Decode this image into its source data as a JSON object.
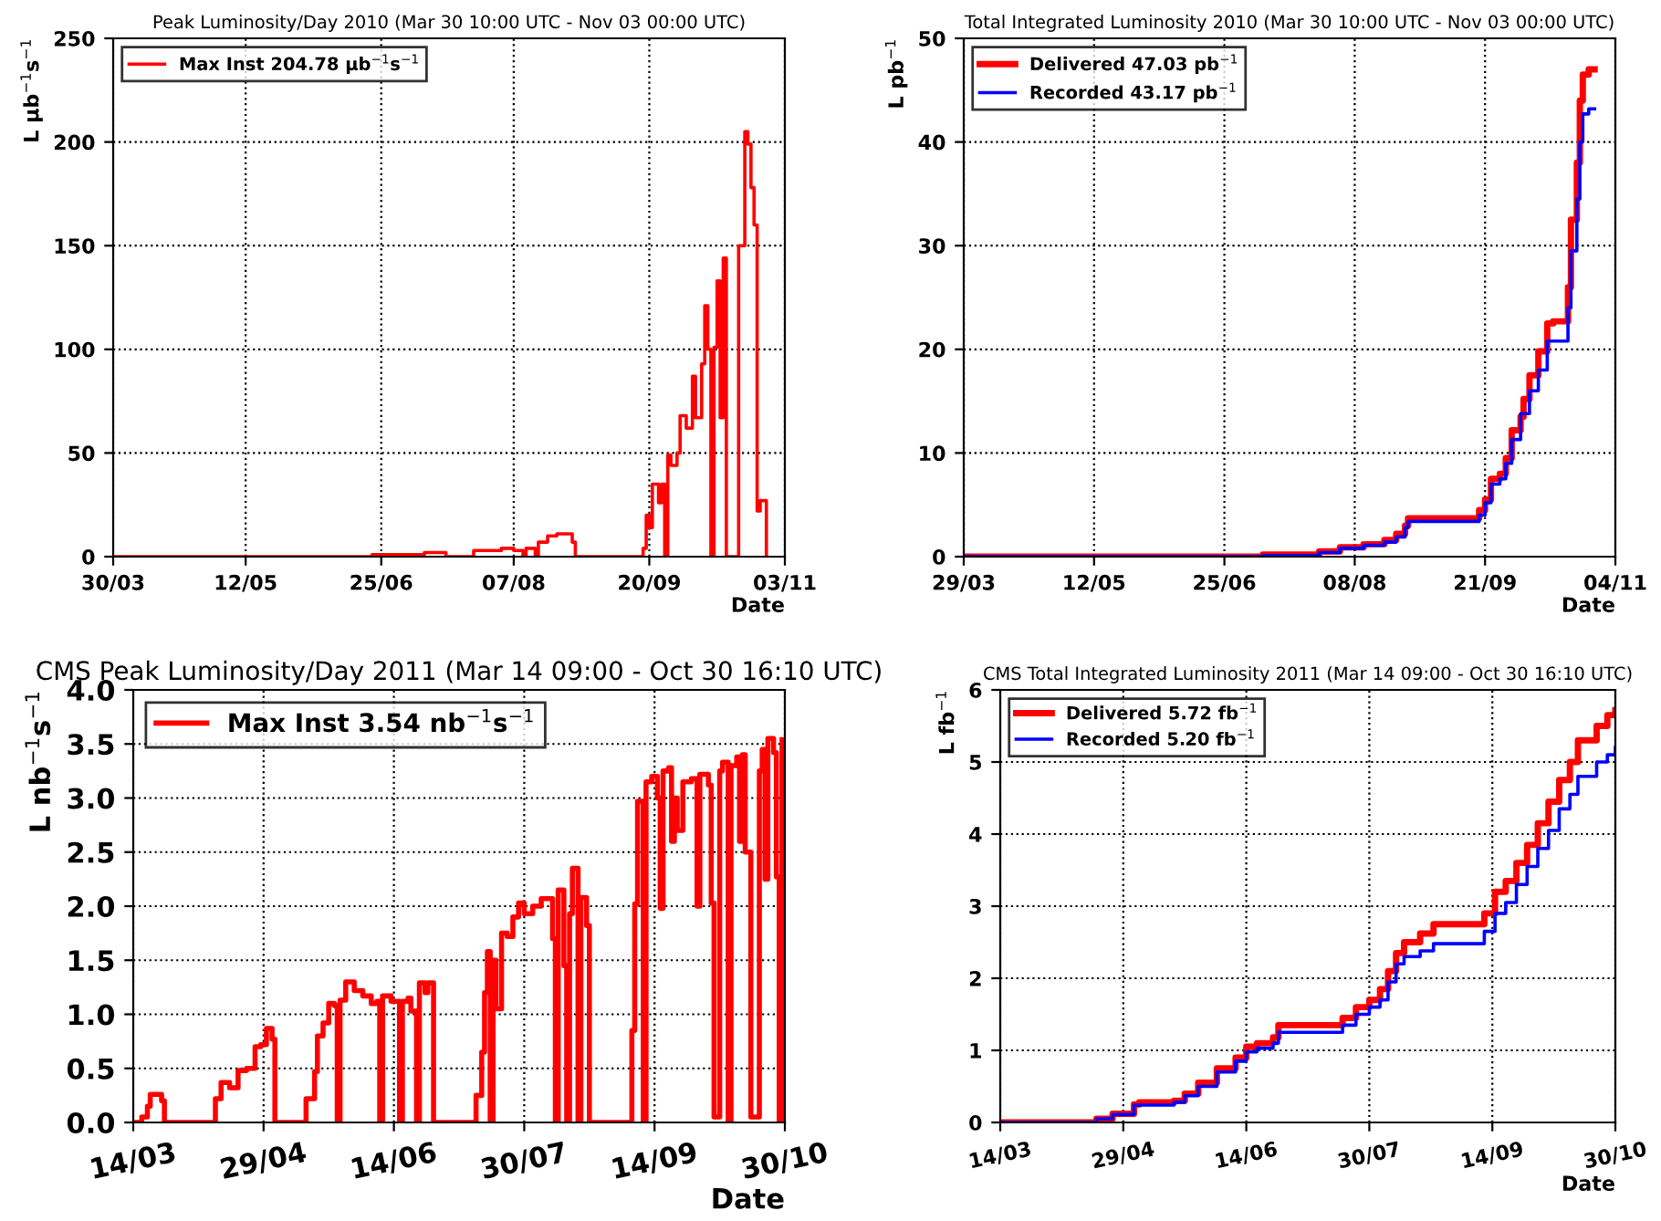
{
  "chart_data": [
    {
      "type": "step",
      "title": "Peak Luminosity/Day 2010 (Mar 30 10:00 UTC - Nov 03 00:00 UTC)",
      "xlabel": "Date",
      "ylabel": "L μb$^{−1}$s$^{−1}$",
      "xlim": [
        "2010-03-30",
        "2010-11-03"
      ],
      "xticks": [
        {
          "value": "2010-03-30",
          "label": "30/03"
        },
        {
          "value": "2010-05-12",
          "label": "12/05"
        },
        {
          "value": "2010-06-25",
          "label": "25/06"
        },
        {
          "value": "2010-08-07",
          "label": "07/08"
        },
        {
          "value": "2010-09-20",
          "label": "20/09"
        },
        {
          "value": "2010-11-03",
          "label": "03/11"
        }
      ],
      "ylim": [
        0,
        250
      ],
      "yticks": [
        0,
        50,
        100,
        150,
        200,
        250
      ],
      "grid": true,
      "legend": "top left",
      "series": [
        {
          "name": "Max Inst 204.78 μb$^{−1}$s$^{−1}$",
          "color": "#ff0000",
          "x": [
            "2010-03-30",
            "2010-06-22",
            "2010-07-09",
            "2010-07-16",
            "2010-07-25",
            "2010-08-03",
            "2010-08-07",
            "2010-08-10",
            "2010-08-11",
            "2010-08-14",
            "2010-08-15",
            "2010-08-18",
            "2010-08-21",
            "2010-08-26",
            "2010-08-27",
            "2010-09-18",
            "2010-09-19",
            "2010-09-20",
            "2010-09-21",
            "2010-09-23",
            "2010-09-24",
            "2010-09-25",
            "2010-09-26",
            "2010-09-27",
            "2010-09-29",
            "2010-09-30",
            "2010-10-02",
            "2010-10-04",
            "2010-10-05",
            "2010-10-07",
            "2010-10-08",
            "2010-10-09",
            "2010-10-10",
            "2010-10-11",
            "2010-10-12",
            "2010-10-13",
            "2010-10-14",
            "2010-10-15",
            "2010-10-19",
            "2010-10-21",
            "2010-10-22",
            "2010-10-23",
            "2010-10-24",
            "2010-10-25",
            "2010-10-26",
            "2010-10-28"
          ],
          "values": [
            0,
            1,
            2,
            0,
            3,
            4,
            3,
            0,
            4,
            0,
            7,
            10,
            11,
            7,
            0,
            4,
            20,
            14,
            35,
            26,
            35,
            0,
            49,
            44,
            50,
            68,
            62,
            87,
            67,
            93,
            121,
            100,
            0,
            101,
            133,
            67,
            144,
            0,
            150,
            205,
            199,
            178,
            160,
            22,
            27,
            0
          ]
        }
      ]
    },
    {
      "type": "step",
      "title": "Total Integrated Luminosity 2010 (Mar 30 10:00 UTC - Nov 03 00:00 UTC)",
      "xlabel": "Date",
      "ylabel": "L pb$^{−1}$",
      "xlim": [
        "2010-03-29",
        "2010-11-04"
      ],
      "xticks": [
        {
          "value": "2010-03-29",
          "label": "29/03"
        },
        {
          "value": "2010-05-12",
          "label": "12/05"
        },
        {
          "value": "2010-06-25",
          "label": "25/06"
        },
        {
          "value": "2010-08-08",
          "label": "08/08"
        },
        {
          "value": "2010-09-21",
          "label": "21/09"
        },
        {
          "value": "2010-11-04",
          "label": "04/11"
        }
      ],
      "ylim": [
        0,
        50
      ],
      "yticks": [
        0,
        10,
        20,
        30,
        40,
        50
      ],
      "grid": true,
      "legend": "top left",
      "series": [
        {
          "name": "Delivered 47.03 pb$^{−1}$",
          "color": "#ff0000",
          "x": [
            "2010-03-29",
            "2010-07-08",
            "2010-07-27",
            "2010-08-03",
            "2010-08-11",
            "2010-08-18",
            "2010-08-22",
            "2010-08-25",
            "2010-08-26",
            "2010-09-19",
            "2010-09-21",
            "2010-09-23",
            "2010-09-26",
            "2010-09-28",
            "2010-09-30",
            "2010-10-03",
            "2010-10-04",
            "2010-10-06",
            "2010-10-09",
            "2010-10-12",
            "2010-10-14",
            "2010-10-19",
            "2010-10-20",
            "2010-10-22",
            "2010-10-23",
            "2010-10-24",
            "2010-10-26",
            "2010-10-28"
          ],
          "values": [
            0,
            0.2,
            0.5,
            0.9,
            1.2,
            1.6,
            2.2,
            3.0,
            3.7,
            4.5,
            5.5,
            7.5,
            8,
            9.5,
            12.2,
            13.5,
            15.2,
            17.5,
            19.8,
            22.5,
            22.7,
            26,
            32.5,
            38,
            44,
            46.5,
            47.0,
            47.0
          ]
        },
        {
          "name": "Recorded 43.17 pb$^{−1}$",
          "color": "#0000ff",
          "x": [
            "2010-03-29",
            "2010-07-08",
            "2010-07-27",
            "2010-08-03",
            "2010-08-11",
            "2010-08-18",
            "2010-08-22",
            "2010-08-25",
            "2010-08-26",
            "2010-09-19",
            "2010-09-21",
            "2010-09-23",
            "2010-09-26",
            "2010-09-28",
            "2010-09-30",
            "2010-10-03",
            "2010-10-06",
            "2010-10-09",
            "2010-10-12",
            "2010-10-19",
            "2010-10-20",
            "2010-10-22",
            "2010-10-23",
            "2010-10-24",
            "2010-10-26",
            "2010-10-28"
          ],
          "values": [
            0,
            0.1,
            0.4,
            0.8,
            1.1,
            1.4,
            1.9,
            2.8,
            3.4,
            4.0,
            5.2,
            7.0,
            7.5,
            9.0,
            11.3,
            13.8,
            16,
            18,
            20.8,
            24,
            29.5,
            34.5,
            40,
            42.7,
            43.2,
            43.2
          ]
        }
      ]
    },
    {
      "type": "step",
      "title": "CMS Peak Luminosity/Day 2011 (Mar 14 09:00 - Oct 30 16:10 UTC)",
      "xlabel": "Date",
      "ylabel": "L nb$^{−1}$s$^{−1}$",
      "xlim": [
        "2011-03-14",
        "2011-10-30"
      ],
      "xticks": [
        {
          "value": "2011-03-14",
          "label": "14/03"
        },
        {
          "value": "2011-04-29",
          "label": "29/04"
        },
        {
          "value": "2011-06-14",
          "label": "14/06"
        },
        {
          "value": "2011-07-30",
          "label": "30/07"
        },
        {
          "value": "2011-09-14",
          "label": "14/09"
        },
        {
          "value": "2011-10-30",
          "label": "30/10"
        }
      ],
      "ylim": [
        0,
        4
      ],
      "yticks": [
        {
          "value": 0,
          "label": "0.0"
        },
        {
          "value": 0.5,
          "label": "0.5"
        },
        {
          "value": 1,
          "label": "1.0"
        },
        {
          "value": 1.5,
          "label": "1.5"
        },
        {
          "value": 2,
          "label": "2.0"
        },
        {
          "value": 2.5,
          "label": "2.5"
        },
        {
          "value": 3,
          "label": "3.0"
        },
        {
          "value": 3.5,
          "label": "3.5"
        },
        {
          "value": 4,
          "label": "4.0"
        }
      ],
      "grid": true,
      "legend": "top left",
      "series": [
        {
          "name": "Max Inst 3.54 nb$^{−1}$s$^{−1}$",
          "color": "#ff0000",
          "x": [
            "2011-03-14",
            "2011-03-17",
            "2011-03-19",
            "2011-03-20",
            "2011-03-24",
            "2011-03-25",
            "2011-04-12",
            "2011-04-14",
            "2011-04-17",
            "2011-04-20",
            "2011-04-23",
            "2011-04-26",
            "2011-04-28",
            "2011-04-30",
            "2011-05-02",
            "2011-05-03",
            "2011-05-14",
            "2011-05-17",
            "2011-05-18",
            "2011-05-20",
            "2011-05-22",
            "2011-05-24",
            "2011-05-25",
            "2011-05-26",
            "2011-05-28",
            "2011-05-31",
            "2011-06-03",
            "2011-06-06",
            "2011-06-08",
            "2011-06-09",
            "2011-06-10",
            "2011-06-13",
            "2011-06-16",
            "2011-06-17",
            "2011-06-19",
            "2011-06-20",
            "2011-06-22",
            "2011-06-23",
            "2011-06-25",
            "2011-06-26",
            "2011-06-28",
            "2011-07-13",
            "2011-07-15",
            "2011-07-16",
            "2011-07-17",
            "2011-07-18",
            "2011-07-19",
            "2011-07-20",
            "2011-07-22",
            "2011-07-24",
            "2011-07-26",
            "2011-07-28",
            "2011-07-30",
            "2011-08-02",
            "2011-08-05",
            "2011-08-09",
            "2011-08-10",
            "2011-08-11",
            "2011-08-13",
            "2011-08-14",
            "2011-08-15",
            "2011-08-16",
            "2011-08-18",
            "2011-08-19",
            "2011-08-21",
            "2011-08-22",
            "2011-09-06",
            "2011-09-07",
            "2011-09-08",
            "2011-09-10",
            "2011-09-11",
            "2011-09-13",
            "2011-09-15",
            "2011-09-16",
            "2011-09-17",
            "2011-09-19",
            "2011-09-20",
            "2011-09-21",
            "2011-09-22",
            "2011-09-24",
            "2011-09-27",
            "2011-09-29",
            "2011-09-30",
            "2011-10-03",
            "2011-10-04",
            "2011-10-05",
            "2011-10-07",
            "2011-10-08",
            "2011-10-10",
            "2011-10-11",
            "2011-10-13",
            "2011-10-14",
            "2011-10-15",
            "2011-10-16",
            "2011-10-18",
            "2011-10-21",
            "2011-10-22",
            "2011-10-23",
            "2011-10-24",
            "2011-10-26",
            "2011-10-27",
            "2011-10-28",
            "2011-10-29"
          ],
          "values": [
            0,
            0.05,
            0.15,
            0.26,
            0.2,
            0,
            0.22,
            0.37,
            0.32,
            0.48,
            0.5,
            0.7,
            0.72,
            0.87,
            0.77,
            0,
            0.22,
            0.47,
            0.8,
            0.92,
            1.1,
            1.08,
            0,
            1.13,
            1.3,
            1.22,
            1.17,
            1.1,
            1.12,
            0,
            1.17,
            1.12,
            0,
            1.12,
            1.15,
            1.03,
            0,
            1.29,
            1.2,
            1.29,
            0,
            0.25,
            0.65,
            1.2,
            1.58,
            0,
            1.5,
            1.05,
            1.75,
            1.72,
            1.9,
            2.03,
            1.93,
            2.0,
            2.07,
            1.7,
            0,
            2.15,
            1.45,
            0,
            1.93,
            2.35,
            0,
            2.08,
            1.82,
            0,
            0.85,
            2.02,
            2.97,
            0,
            3.15,
            3.2,
            3.0,
            1.98,
            3.25,
            3.28,
            2.6,
            3.0,
            2.7,
            3.15,
            3.18,
            2.0,
            3.22,
            3.12,
            2.03,
            0.05,
            3.25,
            3.33,
            0,
            3.3,
            3.38,
            2.6,
            3.4,
            2.5,
            0.05,
            3.25,
            3.45,
            2.25,
            3.55,
            3.42,
            2.27,
            0,
            3.54
          ]
        }
      ]
    },
    {
      "type": "step",
      "title": "CMS Total Integrated Luminosity 2011 (Mar 14 09:00 - Oct 30 16:10 UTC)",
      "xlabel": "Date",
      "ylabel": "L fb$^{−1}$",
      "xlim": [
        "2011-03-14",
        "2011-10-30"
      ],
      "xticks": [
        {
          "value": "2011-03-14",
          "label": "14/03"
        },
        {
          "value": "2011-04-29",
          "label": "29/04"
        },
        {
          "value": "2011-06-14",
          "label": "14/06"
        },
        {
          "value": "2011-07-30",
          "label": "30/07"
        },
        {
          "value": "2011-09-14",
          "label": "14/09"
        },
        {
          "value": "2011-10-30",
          "label": "30/10"
        }
      ],
      "ylim": [
        0,
        6
      ],
      "yticks": [
        0,
        1,
        2,
        3,
        4,
        5,
        6
      ],
      "grid": true,
      "legend": "top left",
      "series": [
        {
          "name": "Delivered 5.72 fb$^{−1}$",
          "color": "#ff0000",
          "x": [
            "2011-03-14",
            "2011-04-19",
            "2011-04-25",
            "2011-05-03",
            "2011-05-05",
            "2011-05-18",
            "2011-05-22",
            "2011-05-27",
            "2011-06-03",
            "2011-06-10",
            "2011-06-14",
            "2011-06-18",
            "2011-06-24",
            "2011-06-26",
            "2011-07-17",
            "2011-07-20",
            "2011-07-25",
            "2011-07-30",
            "2011-08-03",
            "2011-08-06",
            "2011-08-09",
            "2011-08-12",
            "2011-08-18",
            "2011-08-23",
            "2011-09-11",
            "2011-09-15",
            "2011-09-19",
            "2011-09-23",
            "2011-09-27",
            "2011-10-01",
            "2011-10-05",
            "2011-10-09",
            "2011-10-13",
            "2011-10-16",
            "2011-10-23",
            "2011-10-27",
            "2011-10-30"
          ],
          "values": [
            0,
            0.05,
            0.12,
            0.25,
            0.28,
            0.3,
            0.4,
            0.55,
            0.75,
            0.9,
            1.05,
            1.1,
            1.18,
            1.35,
            1.35,
            1.45,
            1.6,
            1.7,
            1.85,
            2.1,
            2.35,
            2.5,
            2.62,
            2.75,
            2.9,
            3.2,
            3.35,
            3.6,
            3.85,
            4.15,
            4.45,
            4.75,
            5.0,
            5.3,
            5.5,
            5.65,
            5.72
          ]
        },
        {
          "name": "Recorded 5.20 fb$^{−1}$",
          "color": "#0000ff",
          "x": [
            "2011-03-14",
            "2011-04-19",
            "2011-04-25",
            "2011-05-03",
            "2011-05-18",
            "2011-05-22",
            "2011-05-27",
            "2011-06-03",
            "2011-06-10",
            "2011-06-14",
            "2011-06-18",
            "2011-06-24",
            "2011-06-26",
            "2011-07-17",
            "2011-07-20",
            "2011-07-25",
            "2011-07-30",
            "2011-08-03",
            "2011-08-06",
            "2011-08-09",
            "2011-08-12",
            "2011-08-18",
            "2011-08-23",
            "2011-09-11",
            "2011-09-15",
            "2011-09-19",
            "2011-09-23",
            "2011-09-27",
            "2011-10-01",
            "2011-10-05",
            "2011-10-09",
            "2011-10-13",
            "2011-10-16",
            "2011-10-23",
            "2011-10-27",
            "2011-10-30"
          ],
          "values": [
            0,
            0.05,
            0.11,
            0.24,
            0.28,
            0.37,
            0.5,
            0.7,
            0.85,
            0.98,
            1.03,
            1.1,
            1.25,
            1.25,
            1.35,
            1.5,
            1.6,
            1.7,
            1.95,
            2.2,
            2.3,
            2.38,
            2.48,
            2.65,
            2.9,
            3.05,
            3.3,
            3.55,
            3.8,
            4.05,
            4.35,
            4.55,
            4.8,
            5.0,
            5.1,
            5.2
          ]
        }
      ]
    }
  ]
}
